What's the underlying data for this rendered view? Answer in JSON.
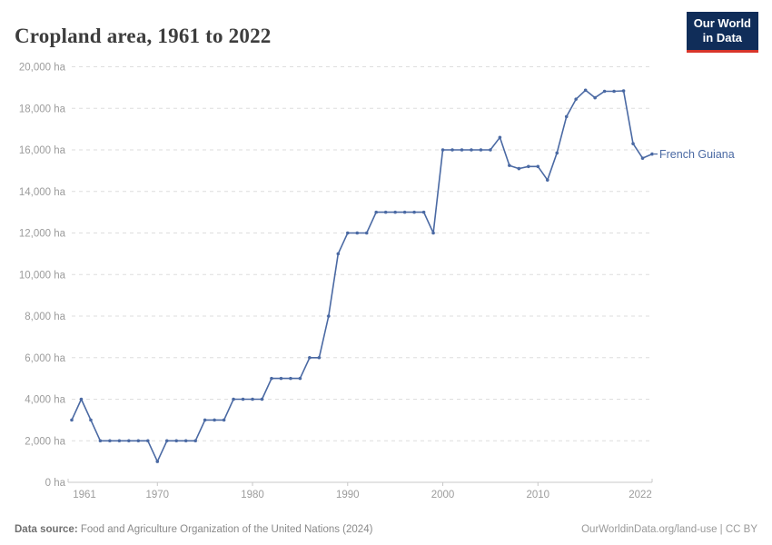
{
  "header": {
    "title": "Cropland area, 1961 to 2022",
    "logo_line1": "Our World",
    "logo_line2": "in Data"
  },
  "series_label": "French Guiana",
  "footer": {
    "source_prefix": "Data source:",
    "source_text": " Food and Agriculture Organization of the United Nations (2024)",
    "credit": "OurWorldinData.org/land-use | CC BY"
  },
  "colors": {
    "line": "#4a69a3",
    "grid": "#dedede",
    "axis_line": "#c8c8c8",
    "axis_text": "#9c9c9c",
    "title_text": "#3d3d3d",
    "logo_bg": "#102d59",
    "logo_red": "#d8352a",
    "footer_text": "#8a8a8a"
  },
  "chart_data": {
    "type": "line",
    "title": "Cropland area, 1961 to 2022",
    "unit": "ha",
    "xlabel": "",
    "ylabel": "",
    "ylim": [
      0,
      20000
    ],
    "ytick_step": 2000,
    "ytick_suffix": " ha",
    "xticks": [
      1961,
      1970,
      1980,
      1990,
      2000,
      2010,
      2022
    ],
    "grid": "dashed-horizontal",
    "legend_position": "end-of-line",
    "series": [
      {
        "name": "French Guiana",
        "x": [
          1961,
          1962,
          1963,
          1964,
          1965,
          1966,
          1967,
          1968,
          1969,
          1970,
          1971,
          1972,
          1973,
          1974,
          1975,
          1976,
          1977,
          1978,
          1979,
          1980,
          1981,
          1982,
          1983,
          1984,
          1985,
          1986,
          1987,
          1988,
          1989,
          1990,
          1991,
          1992,
          1993,
          1994,
          1995,
          1996,
          1997,
          1998,
          1999,
          2000,
          2001,
          2002,
          2003,
          2004,
          2005,
          2006,
          2007,
          2008,
          2009,
          2010,
          2011,
          2012,
          2013,
          2014,
          2015,
          2016,
          2017,
          2018,
          2019,
          2020,
          2021,
          2022
        ],
        "values": [
          3000,
          4000,
          3000,
          2000,
          2000,
          2000,
          2000,
          2000,
          2000,
          1000,
          2000,
          2000,
          2000,
          2000,
          3000,
          3000,
          3000,
          4000,
          4000,
          4000,
          4000,
          5000,
          5000,
          5000,
          5000,
          6000,
          6000,
          8000,
          11000,
          12000,
          12000,
          12000,
          13000,
          13000,
          13000,
          13000,
          13000,
          13000,
          12000,
          16000,
          16000,
          16000,
          16000,
          16000,
          16000,
          16600,
          15250,
          15100,
          15200,
          15200,
          14550,
          15850,
          17600,
          18440,
          18870,
          18510,
          18820,
          18820,
          18840,
          16300,
          15600,
          15800
        ]
      }
    ]
  }
}
